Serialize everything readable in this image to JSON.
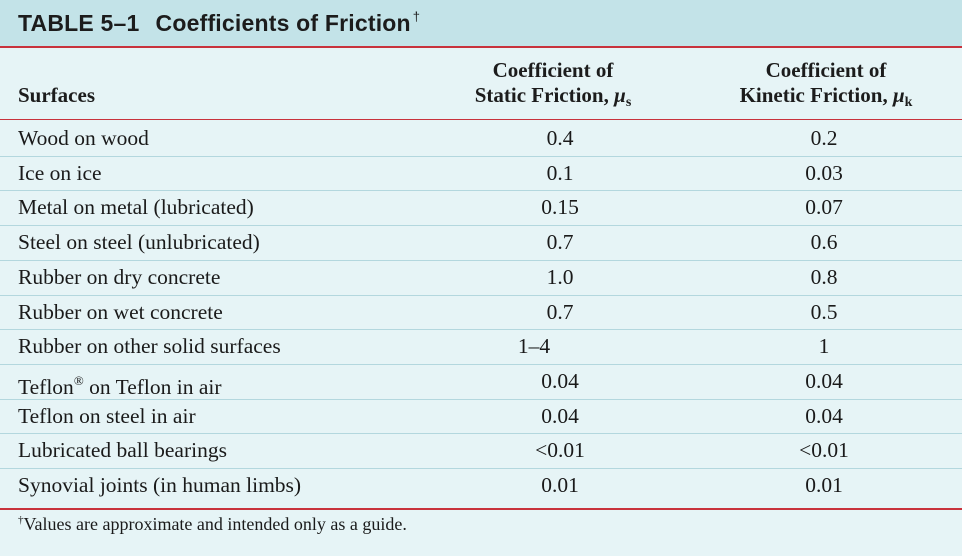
{
  "table": {
    "number": "TABLE 5–1",
    "title": "Coefficients of Friction",
    "title_mark": "†",
    "headers": {
      "surfaces": "Surfaces",
      "static_line1": "Coefficient of",
      "static_line2": "Static Friction,",
      "static_symbol": "μ",
      "static_sub": "s",
      "kinetic_line1": "Coefficient of",
      "kinetic_line2": "Kinetic Friction,",
      "kinetic_symbol": "μ",
      "kinetic_sub": "k"
    },
    "rows": [
      {
        "surface": "Wood on wood",
        "static": "0.4",
        "kinetic": "0.2"
      },
      {
        "surface": "Ice on ice",
        "static": "0.1",
        "kinetic": "0.03"
      },
      {
        "surface": "Metal on metal (lubricated)",
        "static": "0.15",
        "kinetic": "0.07"
      },
      {
        "surface": "Steel on steel (unlubricated)",
        "static": "0.7",
        "kinetic": "0.6"
      },
      {
        "surface": "Rubber on dry concrete",
        "static": "1.0",
        "kinetic": "0.8"
      },
      {
        "surface": "Rubber on wet concrete",
        "static": "0.7",
        "kinetic": "0.5"
      },
      {
        "surface": "Rubber on other solid surfaces",
        "static": "1–4",
        "kinetic": "1"
      },
      {
        "surface": "Teflon",
        "surface_mark": "®",
        "surface_rest": " on Teflon in air",
        "static": "0.04",
        "kinetic": "0.04"
      },
      {
        "surface": "Teflon on steel in air",
        "static": "0.04",
        "kinetic": "0.04"
      },
      {
        "surface": "Lubricated ball bearings",
        "static": "<0.01",
        "kinetic": "<0.01"
      },
      {
        "surface": "Synovial joints (in human limbs)",
        "static": "0.01",
        "kinetic": "0.01"
      }
    ],
    "footnote_mark": "†",
    "footnote": "Values are approximate and intended only as a guide."
  },
  "colors": {
    "background": "#e6f4f6",
    "title_bar": "#c3e3e8",
    "rule": "#c8323c"
  }
}
